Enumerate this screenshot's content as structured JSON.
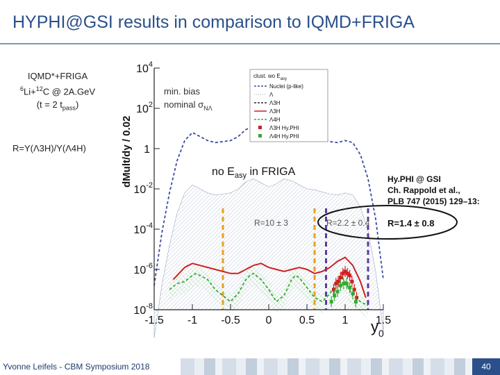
{
  "slide": {
    "title": "HYPHI@GSI results in comparison to IQMD+FRIGA",
    "left_note": {
      "line1": "IQMD*+FRIGA",
      "line2_sup": "6",
      "line2_mid": "Li+",
      "line2_sup2": "12",
      "line2_end": "C @ 2A.GeV",
      "line3_pre": "(t = 2 t",
      "line3_sub": "pass",
      "line3_post": ")"
    },
    "ratio_label": "R=Y(Λ3H)/Y(Λ4H)",
    "footer_left": "Yvonne Leifels - CBM Symposium 2018",
    "page_number": "40"
  },
  "chart_data": {
    "type": "line",
    "x_label": "y",
    "x_label_sub": "0",
    "y_label": "dMult/dy / 0.02",
    "xlim": [
      -1.5,
      1.5
    ],
    "ylim_log10": [
      -8,
      4
    ],
    "y_scale": "log",
    "x_ticks": [
      "-1.5",
      "-1",
      "-0.5",
      "0",
      "0.5",
      "1",
      "1.5"
    ],
    "y_ticks": [
      {
        "base": "10",
        "exp": "4",
        "log": 4
      },
      {
        "base": "10",
        "exp": "2",
        "log": 2
      },
      {
        "base": "1",
        "exp": "",
        "log": 0
      },
      {
        "base": "10",
        "exp": "-2",
        "log": -2
      },
      {
        "base": "10",
        "exp": "-4",
        "log": -4
      },
      {
        "base": "10",
        "exp": "-6",
        "log": -6
      },
      {
        "base": "10",
        "exp": "-8",
        "log": -8
      }
    ],
    "annotations": {
      "min_bias": "min. bias",
      "nominal": "nominal σ",
      "nominal_sub": "NΛ",
      "no_easy_pre": "no E",
      "no_easy_sub": "asy",
      "no_easy_post": " in FRIGA",
      "hyphi_ref_1": "Hy.PHI @ GSI",
      "hyphi_ref_2": "Ch. Rappold et al.,",
      "hyphi_ref_3": "PLB 747 (2015) 129–13:",
      "r1": "R=10 ± 3",
      "r2": "R=2.2 ± 0.4",
      "r3": "R=1.4 ± 0.8"
    },
    "cut_lines": [
      {
        "x": -0.6,
        "color": "#e8a020"
      },
      {
        "x": 0.6,
        "color": "#e8a020"
      },
      {
        "x": 0.75,
        "color": "#5a3d9a"
      },
      {
        "x": 1.3,
        "color": "#5a3d9a"
      }
    ],
    "legend": {
      "header_pre": "clust. wo E",
      "header_sub": "asy",
      "entries": [
        {
          "label": "Nuclei (p-like)",
          "color": "#3a4aa8",
          "style": "dash"
        },
        {
          "label": "Λ",
          "color": "#c0c0c0",
          "style": "dot"
        },
        {
          "label": "Λ3H",
          "color": "#2a2a2a",
          "style": "dash"
        },
        {
          "label": "Λ3H",
          "color": "#cc2020",
          "style": "line"
        },
        {
          "label": "Λ4H",
          "color": "#33aa33",
          "style": "dash"
        },
        {
          "label": "Λ3H Hy.PHI",
          "color": "#cc2020",
          "style": "marker"
        },
        {
          "label": "Λ4H Hy.PHI",
          "color": "#33aa33",
          "style": "marker"
        }
      ]
    },
    "series": [
      {
        "name": "Nuclei (p-like)",
        "color": "#3a4aa8",
        "style": "dash",
        "x": [
          -1.5,
          -1.4,
          -1.3,
          -1.2,
          -1.1,
          -1.0,
          -0.9,
          -0.8,
          -0.7,
          -0.6,
          -0.5,
          -0.4,
          -0.3,
          -0.2,
          -0.1,
          0.0,
          0.1,
          0.2,
          0.3,
          0.4,
          0.5,
          0.6,
          0.7,
          0.8,
          0.9,
          1.0,
          1.1,
          1.2,
          1.3,
          1.4,
          1.5
        ],
        "y": [
          -6.8,
          -4.2,
          -2.2,
          -0.6,
          0.4,
          0.8,
          0.6,
          0.4,
          0.3,
          0.35,
          0.4,
          0.6,
          0.95,
          1.1,
          0.9,
          0.7,
          0.85,
          1.1,
          1.0,
          0.8,
          0.6,
          0.55,
          0.45,
          0.35,
          0.3,
          0.4,
          0.3,
          -0.3,
          -1.5,
          -3.5,
          -6.5
        ]
      },
      {
        "name": "Λ3H",
        "color": "#cc2020",
        "style": "line",
        "x": [
          -1.25,
          -1.1,
          -1.0,
          -0.9,
          -0.8,
          -0.7,
          -0.6,
          -0.5,
          -0.4,
          -0.3,
          -0.2,
          -0.1,
          0.0,
          0.1,
          0.2,
          0.3,
          0.4,
          0.5,
          0.6,
          0.7,
          0.8,
          0.9,
          1.0,
          1.1,
          1.2,
          1.27
        ],
        "y": [
          -6.5,
          -5.9,
          -5.7,
          -5.8,
          -5.9,
          -6.0,
          -6.1,
          -6.2,
          -6.2,
          -6.0,
          -5.8,
          -5.7,
          -5.9,
          -6.0,
          -6.1,
          -6.0,
          -5.9,
          -6.0,
          -6.2,
          -6.1,
          -5.9,
          -5.6,
          -5.4,
          -5.8,
          -6.6,
          -7.4
        ]
      },
      {
        "name": "Λ4H",
        "color": "#33aa33",
        "style": "dash",
        "x": [
          -1.3,
          -1.2,
          -1.1,
          -1.0,
          -0.95,
          -0.9,
          -0.8,
          -0.7,
          -0.6,
          -0.5,
          -0.4,
          -0.3,
          -0.25,
          -0.2,
          -0.1,
          0.0,
          0.1,
          0.2,
          0.3,
          0.35,
          0.4,
          0.5,
          0.6,
          0.7,
          0.8,
          0.9,
          0.95,
          1.0,
          1.1,
          1.2,
          1.3
        ],
        "y": [
          -7.0,
          -6.7,
          -6.6,
          -6.3,
          -6.2,
          -6.3,
          -6.5,
          -7.0,
          -7.3,
          -7.6,
          -7.2,
          -6.5,
          -6.3,
          -6.2,
          -6.5,
          -7.0,
          -7.6,
          -7.3,
          -6.5,
          -6.3,
          -6.4,
          -6.9,
          -7.4,
          -7.6,
          -7.2,
          -6.6,
          -6.4,
          -6.6,
          -7.3,
          -7.6,
          -7.8
        ]
      },
      {
        "name": "Λ3H Hy.PHI",
        "color": "#cc2020",
        "style": "marker",
        "x": [
          0.85,
          0.88,
          0.91,
          0.94,
          0.97,
          1.0,
          1.03,
          1.06,
          1.09,
          1.12,
          1.15
        ],
        "y": [
          -7.0,
          -6.7,
          -6.6,
          -6.4,
          -6.2,
          -6.1,
          -6.2,
          -6.3,
          -6.6,
          -7.0,
          -7.4
        ]
      },
      {
        "name": "Λ4H Hy.PHI",
        "color": "#33aa33",
        "style": "marker",
        "x": [
          0.82,
          0.86,
          0.9,
          0.94,
          0.98,
          1.02,
          1.06,
          1.1,
          1.14
        ],
        "y": [
          -7.6,
          -7.3,
          -7.1,
          -6.8,
          -6.7,
          -6.7,
          -6.9,
          -7.2,
          -7.6
        ]
      }
    ]
  }
}
